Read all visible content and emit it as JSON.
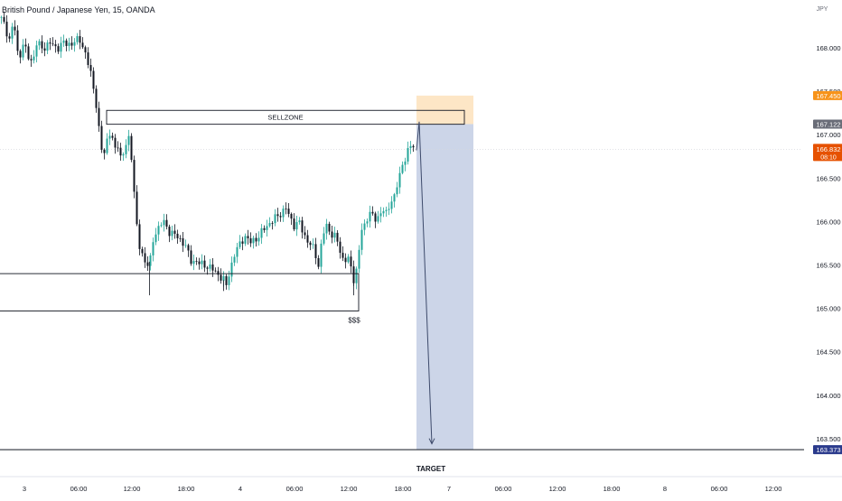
{
  "header": {
    "symbol_title": "British Pound / Japanese Yen, 15, OANDA"
  },
  "price_scale": {
    "currency": "JPY",
    "ticks": [
      "168.000",
      "167.500",
      "167.000",
      "166.500",
      "166.000",
      "165.500",
      "165.000",
      "164.500",
      "164.000",
      "163.500"
    ]
  },
  "price_badges": {
    "take_profit": "167.450",
    "entry": "167.122",
    "last": "166.832",
    "countdown": "08:10",
    "target": "163.373"
  },
  "time_axis": {
    "ticks": [
      "3",
      "06:00",
      "12:00",
      "18:00",
      "4",
      "06:00",
      "12:00",
      "18:00",
      "7",
      "06:00",
      "12:00",
      "18:00",
      "8",
      "06:00",
      "12:00"
    ]
  },
  "annotations": {
    "sell_zone": "SELLZONE",
    "liquidity": "$$$",
    "target": "TARGET"
  },
  "colors": {
    "bull_candle": "#26a69a",
    "bear_candle": "#131722",
    "profit_zone": "#c7d0e6",
    "stop_zone": "#fde3c0",
    "take_profit_badge": "#f7931a",
    "entry_badge": "#6a6d78",
    "last_badge": "#e65100",
    "target_badge": "#2a3a8c"
  },
  "chart_data": {
    "type": "candlestick",
    "symbol": "GBPJPY",
    "interval": "15",
    "ylim": [
      163.2,
      168.5
    ],
    "y_ticks": [
      168.0,
      167.5,
      167.0,
      166.5,
      166.0,
      165.5,
      165.0,
      164.5,
      164.0,
      163.5
    ],
    "x_tick_labels": [
      "3",
      "06:00",
      "12:00",
      "18:00",
      "4",
      "06:00",
      "12:00",
      "18:00",
      "7",
      "06:00",
      "12:00",
      "18:00",
      "8",
      "06:00",
      "12:00"
    ],
    "close_path": [
      [
        0,
        168.35
      ],
      [
        5,
        168.25
      ],
      [
        10,
        168.1
      ],
      [
        15,
        168.3
      ],
      [
        20,
        167.85
      ],
      [
        25,
        168.05
      ],
      [
        30,
        167.9
      ],
      [
        36,
        167.85
      ],
      [
        40,
        168.05
      ],
      [
        46,
        168.0
      ],
      [
        55,
        168.05
      ],
      [
        62,
        168.0
      ],
      [
        70,
        168.05
      ],
      [
        80,
        168.05
      ],
      [
        88,
        168.1
      ],
      [
        92,
        168.0
      ],
      [
        96,
        167.85
      ],
      [
        100,
        167.7
      ],
      [
        104,
        167.5
      ],
      [
        108,
        167.2
      ],
      [
        110,
        166.9
      ],
      [
        114,
        166.75
      ],
      [
        118,
        166.95
      ],
      [
        122,
        167.05
      ],
      [
        126,
        166.8
      ],
      [
        130,
        166.9
      ],
      [
        134,
        166.7
      ],
      [
        138,
        166.85
      ],
      [
        142,
        166.95
      ],
      [
        146,
        166.7
      ],
      [
        150,
        166.0
      ],
      [
        154,
        165.7
      ],
      [
        158,
        165.6
      ],
      [
        162,
        165.5
      ],
      [
        166,
        165.55
      ],
      [
        170,
        165.85
      ],
      [
        176,
        165.95
      ],
      [
        180,
        166.0
      ],
      [
        186,
        165.9
      ],
      [
        192,
        165.85
      ],
      [
        198,
        165.8
      ],
      [
        204,
        165.75
      ],
      [
        210,
        165.55
      ],
      [
        216,
        165.55
      ],
      [
        222,
        165.5
      ],
      [
        228,
        165.5
      ],
      [
        234,
        165.45
      ],
      [
        240,
        165.4
      ],
      [
        246,
        165.35
      ],
      [
        250,
        165.25
      ],
      [
        254,
        165.45
      ],
      [
        260,
        165.65
      ],
      [
        266,
        165.75
      ],
      [
        270,
        165.85
      ],
      [
        276,
        165.75
      ],
      [
        282,
        165.8
      ],
      [
        288,
        165.85
      ],
      [
        294,
        165.95
      ],
      [
        300,
        166.0
      ],
      [
        306,
        166.05
      ],
      [
        310,
        166.1
      ],
      [
        316,
        166.15
      ],
      [
        320,
        166.05
      ],
      [
        326,
        165.95
      ],
      [
        330,
        166.0
      ],
      [
        336,
        165.85
      ],
      [
        342,
        165.75
      ],
      [
        348,
        165.65
      ],
      [
        352,
        165.5
      ],
      [
        356,
        165.8
      ],
      [
        360,
        165.95
      ],
      [
        364,
        165.9
      ],
      [
        368,
        165.85
      ],
      [
        372,
        165.8
      ],
      [
        376,
        165.65
      ],
      [
        380,
        165.55
      ],
      [
        384,
        165.6
      ],
      [
        388,
        165.45
      ],
      [
        392,
        165.3
      ],
      [
        396,
        165.6
      ],
      [
        400,
        165.9
      ],
      [
        404,
        165.95
      ],
      [
        408,
        166.15
      ],
      [
        412,
        166.05
      ],
      [
        416,
        166.0
      ],
      [
        420,
        166.1
      ],
      [
        424,
        166.15
      ],
      [
        428,
        166.05
      ],
      [
        432,
        166.25
      ],
      [
        436,
        166.3
      ],
      [
        440,
        166.45
      ],
      [
        444,
        166.6
      ],
      [
        448,
        166.75
      ],
      [
        452,
        166.85
      ],
      [
        456,
        166.85
      ],
      [
        460,
        166.9
      ]
    ],
    "last_price": 166.832,
    "sell_zone": {
      "label": "SELLZONE",
      "x": [
        118,
        514
      ],
      "y_low": 167.12,
      "y_high": 167.28
    },
    "liquidity_zone": {
      "label": "$$$",
      "x": [
        0,
        397
      ],
      "y_low": 164.97,
      "y_high": 165.4
    },
    "short_position": {
      "x": [
        461,
        524
      ],
      "entry": 167.122,
      "stop": 167.45,
      "target": 163.373
    },
    "projection": [
      [
        461,
        166.82
      ],
      [
        464,
        167.15
      ],
      [
        478,
        163.44
      ]
    ],
    "target_line": 163.373
  }
}
